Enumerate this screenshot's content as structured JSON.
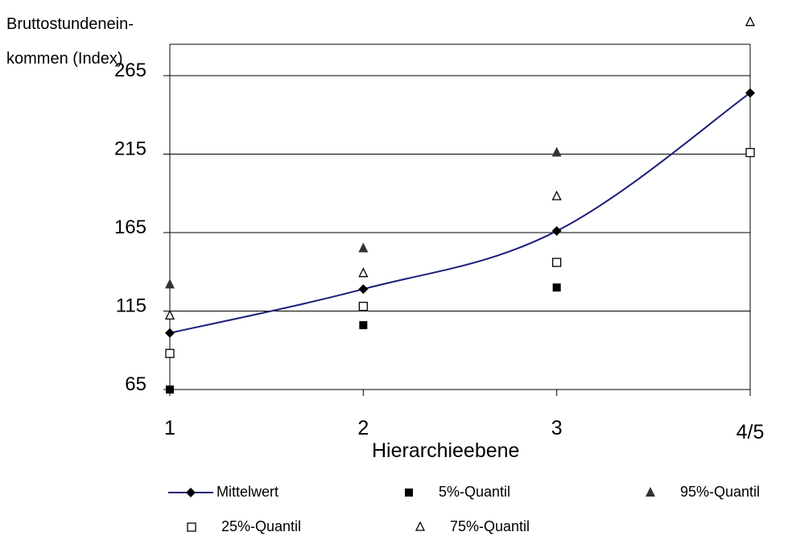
{
  "chart_data": {
    "type": "line",
    "ylabel_lines": [
      "Bruttostundenein-",
      "kommen (Index)"
    ],
    "xlabel": "Hierarchieebene",
    "categories": [
      "1",
      "2",
      "3",
      "4/5"
    ],
    "yticks": [
      65,
      115,
      165,
      215,
      265
    ],
    "ylim": [
      65,
      285
    ],
    "grid": true,
    "legend_position": "bottom",
    "series": [
      {
        "name": "Mittelwert",
        "marker": "diamond-filled",
        "line": true,
        "color": "#1a1f7a",
        "values": [
          101,
          129,
          166,
          254
        ]
      },
      {
        "name": "5%-Quantil",
        "marker": "square-filled",
        "line": false,
        "color": "#000000",
        "values": [
          65,
          106,
          130,
          null
        ]
      },
      {
        "name": "95%-Quantil",
        "marker": "triangle-filled",
        "line": false,
        "color": "#333333",
        "values": [
          132,
          155,
          216,
          null
        ]
      },
      {
        "name": "25%-Quantil",
        "marker": "square-open",
        "line": false,
        "color": "#000000",
        "values": [
          88,
          118,
          146,
          216
        ]
      },
      {
        "name": "75%-Quantil",
        "marker": "triangle-open",
        "line": false,
        "color": "#000000",
        "values": [
          112,
          139,
          188,
          299
        ]
      }
    ]
  }
}
